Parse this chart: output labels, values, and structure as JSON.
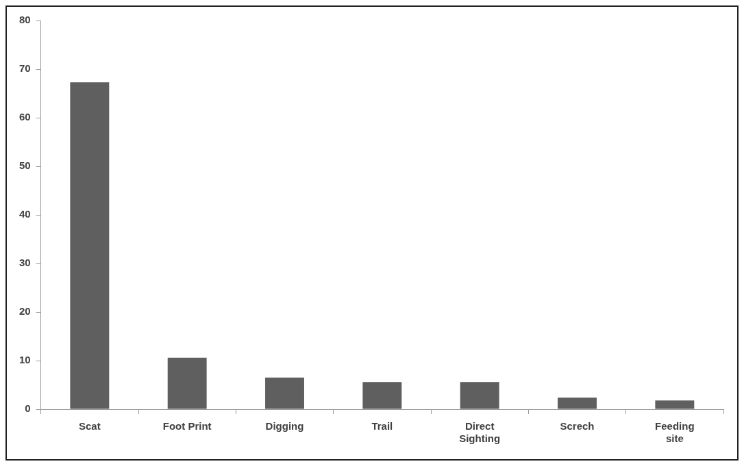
{
  "chart_data": {
    "type": "bar",
    "categories": [
      "Scat",
      "Foot Print",
      "Digging",
      "Trail",
      "Direct Sighting",
      "Screch",
      "Feeding site"
    ],
    "values": [
      67.3,
      10.6,
      6.5,
      5.6,
      5.6,
      2.4,
      1.8
    ],
    "color": "#5f5f5f",
    "ylim": [
      0,
      80
    ],
    "yticks": [
      0,
      10,
      20,
      30,
      40,
      50,
      60,
      70,
      80
    ],
    "grid": false,
    "legend": false
  }
}
